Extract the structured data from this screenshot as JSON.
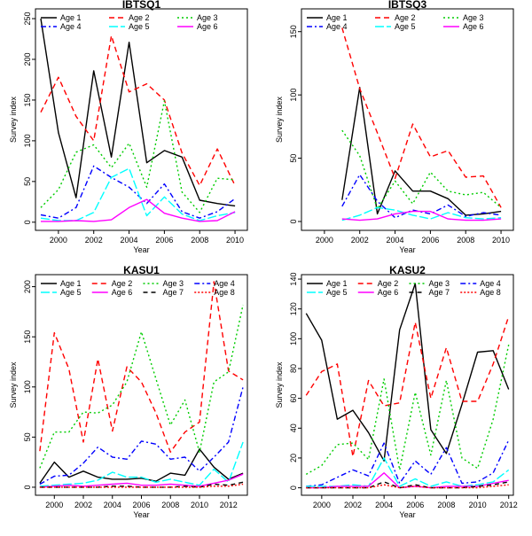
{
  "chart_data": [
    {
      "type": "line",
      "title": "IBTSQ1",
      "xlabel": "Year",
      "ylabel": "Survey index",
      "xlim": [
        1998.7,
        2010.7
      ],
      "ylim": [
        -10,
        262
      ],
      "xticks": [
        2000,
        2002,
        2004,
        2006,
        2008,
        2010
      ],
      "yticks": [
        0,
        50,
        100,
        150,
        200,
        250
      ],
      "legend_loc": "top",
      "legend_cols": 3,
      "x": [
        1999,
        2000,
        2001,
        2002,
        2003,
        2004,
        2005,
        2006,
        2007,
        2008,
        2009,
        2010
      ],
      "series": [
        {
          "name": "Age 1",
          "color": "#000000",
          "dash": "",
          "values": [
            250,
            110,
            30,
            186,
            80,
            221,
            73,
            88,
            80,
            27,
            23,
            20
          ]
        },
        {
          "name": "Age 2",
          "color": "#ff0000",
          "dash": "6,4",
          "values": [
            135,
            178,
            130,
            100,
            229,
            160,
            170,
            150,
            85,
            45,
            90,
            45
          ]
        },
        {
          "name": "Age 3",
          "color": "#00cc00",
          "dash": "2,3",
          "values": [
            18,
            40,
            86,
            95,
            67,
            97,
            43,
            149,
            37,
            12,
            54,
            52
          ]
        },
        {
          "name": "Age 4",
          "color": "#0000ff",
          "dash": "6,3,2,3",
          "values": [
            9,
            5,
            18,
            69,
            55,
            43,
            23,
            47,
            13,
            5,
            13,
            29
          ]
        },
        {
          "name": "Age 5",
          "color": "#00ffff",
          "dash": "10,3",
          "values": [
            5,
            2,
            2,
            12,
            55,
            66,
            8,
            31,
            10,
            2,
            8,
            12
          ]
        },
        {
          "name": "Age 6",
          "color": "#ff00ff",
          "dash": "",
          "values": [
            1,
            1,
            2,
            1,
            3,
            18,
            28,
            11,
            5,
            1,
            2,
            13
          ]
        }
      ]
    },
    {
      "type": "line",
      "title": "IBTSQ3",
      "xlabel": "Year",
      "ylabel": "Survey index",
      "xlim": [
        1998.7,
        2010.7
      ],
      "ylim": [
        -7,
        168
      ],
      "xticks": [
        2000,
        2002,
        2004,
        2006,
        2008,
        2010
      ],
      "yticks": [
        0,
        50,
        100,
        150
      ],
      "legend_loc": "top",
      "legend_cols": 3,
      "x": [
        2001,
        2002,
        2003,
        2004,
        2005,
        2006,
        2007,
        2008,
        2009,
        2010
      ],
      "series": [
        {
          "name": "Age 1",
          "color": "#000000",
          "dash": "",
          "values": [
            17,
            106,
            6,
            40,
            24,
            24,
            18,
            5,
            6,
            8
          ]
        },
        {
          "name": "Age 2",
          "color": "#ff0000",
          "dash": "6,4",
          "values": [
            153,
            105,
            70,
            34,
            77,
            51,
            56,
            35,
            36,
            11
          ]
        },
        {
          "name": "Age 3",
          "color": "#00cc00",
          "dash": "2,3",
          "values": [
            72,
            52,
            10,
            32,
            14,
            39,
            24,
            21,
            23,
            11
          ]
        },
        {
          "name": "Age 4",
          "color": "#0000ff",
          "dash": "6,3,2,3",
          "values": [
            12,
            37,
            16,
            3,
            9,
            6,
            13,
            4,
            7,
            5
          ]
        },
        {
          "name": "Age 5",
          "color": "#00ffff",
          "dash": "10,3",
          "values": [
            1,
            5,
            11,
            9,
            5,
            2,
            7,
            3,
            2,
            3
          ]
        },
        {
          "name": "Age 6",
          "color": "#ff00ff",
          "dash": "",
          "values": [
            2,
            1,
            2,
            6,
            8,
            8,
            2,
            1,
            1,
            2
          ]
        }
      ]
    },
    {
      "type": "line",
      "title": "KASU1",
      "xlabel": "Year",
      "ylabel": "Survey index",
      "xlim": [
        1998.7,
        2013.3
      ],
      "ylim": [
        -8,
        212
      ],
      "xticks": [
        2000,
        2002,
        2004,
        2006,
        2008,
        2010,
        2012
      ],
      "yticks": [
        0,
        50,
        100,
        150,
        200
      ],
      "legend_loc": "top",
      "legend_cols": 4,
      "x": [
        1999,
        2000,
        2001,
        2002,
        2003,
        2004,
        2005,
        2006,
        2007,
        2008,
        2009,
        2010,
        2011,
        2012,
        2013
      ],
      "series": [
        {
          "name": "Age 1",
          "color": "#000000",
          "dash": "",
          "values": [
            4,
            25,
            10,
            16,
            10,
            8,
            8,
            9,
            6,
            14,
            12,
            38,
            20,
            8,
            14
          ]
        },
        {
          "name": "Age 2",
          "color": "#ff0000",
          "dash": "6,4",
          "values": [
            36,
            154,
            118,
            45,
            128,
            56,
            120,
            105,
            74,
            35,
            55,
            65,
            205,
            116,
            107
          ]
        },
        {
          "name": "Age 3",
          "color": "#00cc00",
          "dash": "2,3",
          "values": [
            19,
            55,
            55,
            75,
            74,
            82,
            105,
            155,
            108,
            62,
            87,
            35,
            105,
            115,
            182
          ]
        },
        {
          "name": "Age 4",
          "color": "#0000ff",
          "dash": "6,3,2,3",
          "values": [
            3,
            11,
            12,
            24,
            40,
            30,
            28,
            46,
            43,
            28,
            30,
            16,
            30,
            45,
            100
          ]
        },
        {
          "name": "Age 5",
          "color": "#00ffff",
          "dash": "10,3",
          "values": [
            1,
            2,
            3,
            4,
            7,
            15,
            10,
            10,
            5,
            8,
            5,
            2,
            18,
            5,
            45
          ]
        },
        {
          "name": "Age 6",
          "color": "#ff00ff",
          "dash": "",
          "values": [
            0,
            1,
            2,
            1,
            2,
            3,
            4,
            2,
            2,
            3,
            2,
            1,
            4,
            7,
            13
          ]
        },
        {
          "name": "Age 7",
          "color": "#000000",
          "dash": "5,4",
          "values": [
            0,
            0,
            0,
            0,
            0,
            1,
            1,
            0,
            0,
            0,
            1,
            0,
            3,
            2,
            5
          ]
        },
        {
          "name": "Age 8",
          "color": "#ff0000",
          "dash": "2,2",
          "values": [
            0,
            0,
            0,
            0,
            0,
            0,
            0,
            0,
            0,
            0,
            0,
            0,
            1,
            1,
            3
          ]
        }
      ]
    },
    {
      "type": "line",
      "title": "KASU2",
      "xlabel": "Year",
      "ylabel": "Survey index",
      "xlim": [
        1998.7,
        2012.3
      ],
      "ylim": [
        -5,
        143
      ],
      "xticks": [
        2000,
        2002,
        2004,
        2006,
        2008,
        2010,
        2012
      ],
      "yticks": [
        0,
        20,
        40,
        60,
        80,
        100,
        120,
        140
      ],
      "legend_loc": "top",
      "legend_cols": 4,
      "x": [
        1999,
        2000,
        2001,
        2002,
        2003,
        2004,
        2005,
        2006,
        2007,
        2008,
        2009,
        2010,
        2011,
        2012
      ],
      "series": [
        {
          "name": "Age 1",
          "color": "#000000",
          "dash": "",
          "values": [
            117,
            99,
            46,
            52,
            37,
            18,
            106,
            137,
            39,
            23,
            56,
            91,
            92,
            66
          ]
        },
        {
          "name": "Age 2",
          "color": "#ff0000",
          "dash": "6,4",
          "values": [
            62,
            78,
            83,
            21,
            72,
            55,
            57,
            111,
            60,
            94,
            58,
            58,
            83,
            115
          ]
        },
        {
          "name": "Age 3",
          "color": "#00cc00",
          "dash": "2,3",
          "values": [
            9,
            15,
            29,
            30,
            19,
            73,
            12,
            64,
            22,
            72,
            20,
            13,
            46,
            96
          ]
        },
        {
          "name": "Age 4",
          "color": "#0000ff",
          "dash": "6,3,2,3",
          "values": [
            1,
            2,
            7,
            12,
            8,
            30,
            3,
            18,
            9,
            27,
            3,
            4,
            10,
            32
          ]
        },
        {
          "name": "Age 5",
          "color": "#00ffff",
          "dash": "10,3",
          "values": [
            1,
            1,
            1,
            2,
            1,
            20,
            1,
            6,
            1,
            4,
            1,
            2,
            4,
            12
          ]
        },
        {
          "name": "Age 6",
          "color": "#ff00ff",
          "dash": "",
          "values": [
            0,
            0,
            1,
            1,
            1,
            10,
            0,
            1,
            0,
            1,
            1,
            1,
            3,
            5
          ]
        },
        {
          "name": "Age 7",
          "color": "#000000",
          "dash": "5,4",
          "values": [
            0,
            0,
            0,
            0,
            0,
            4,
            0,
            2,
            0,
            0,
            0,
            1,
            2,
            4
          ]
        },
        {
          "name": "Age 8",
          "color": "#ff0000",
          "dash": "2,2",
          "values": [
            0,
            0,
            0,
            0,
            0,
            2,
            0,
            1,
            0,
            0,
            0,
            0,
            1,
            2
          ]
        }
      ]
    }
  ]
}
